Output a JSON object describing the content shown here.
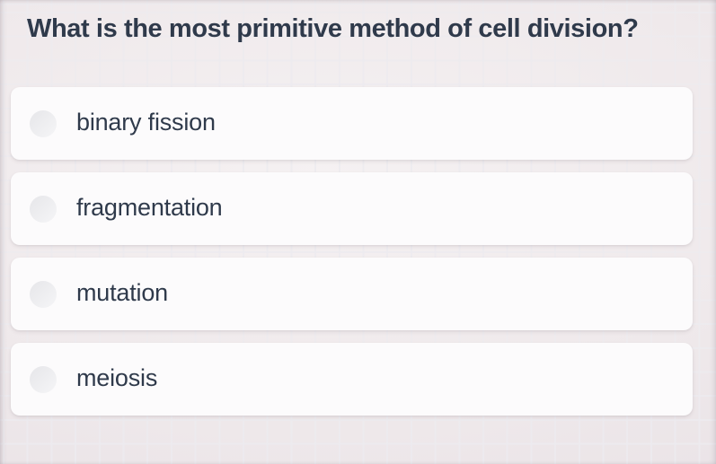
{
  "question": {
    "text": "What is the most primitive method of cell division?"
  },
  "options": [
    {
      "label": "binary fission",
      "selected": false
    },
    {
      "label": "fragmentation",
      "selected": false
    },
    {
      "label": "mutation",
      "selected": false
    },
    {
      "label": "meiosis",
      "selected": false
    }
  ],
  "colors": {
    "question_text": "#2f3a4b",
    "option_text": "#2f3a4b",
    "card_background": "#fcfbfc",
    "radio_fill": "#ededef",
    "background_left_tint": "#e9dee1",
    "background_center_tint": "#f3eff0",
    "background_right_tint": "#e4e2e8",
    "grid_line": "#edebef"
  }
}
